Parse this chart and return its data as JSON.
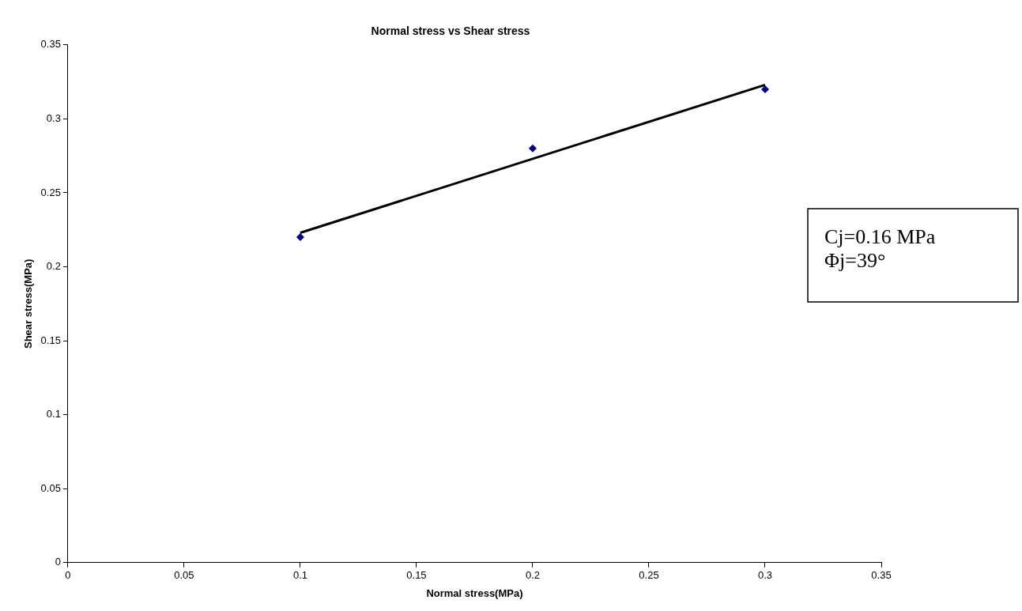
{
  "chart_data": {
    "type": "scatter",
    "title": "Normal stress vs Shear stress",
    "xlabel": "Normal stress(MPa)",
    "ylabel": "Shear stress(MPa)",
    "x": [
      0.1,
      0.2,
      0.3
    ],
    "series": [
      {
        "color": "#000080",
        "marker": "diamond",
        "values": [
          0.22,
          0.28,
          0.32
        ]
      },
      {
        "type": "line",
        "color": "#000000",
        "marker": "none",
        "x": [
          0.1,
          0.3
        ],
        "values": [
          0.223,
          0.323
        ]
      }
    ],
    "xlim": [
      0,
      0.35
    ],
    "xticks": [
      0,
      0.05,
      0.1,
      0.15,
      0.2,
      0.25,
      0.3,
      0.35
    ],
    "ylim": [
      0,
      0.35
    ],
    "yticks": [
      0,
      0.05,
      0.1,
      0.15,
      0.2,
      0.25,
      0.3,
      0.35
    ],
    "grid": false,
    "legend": false,
    "annotations": [
      "Cj=0.16 MPa",
      "Φj=39°"
    ]
  }
}
